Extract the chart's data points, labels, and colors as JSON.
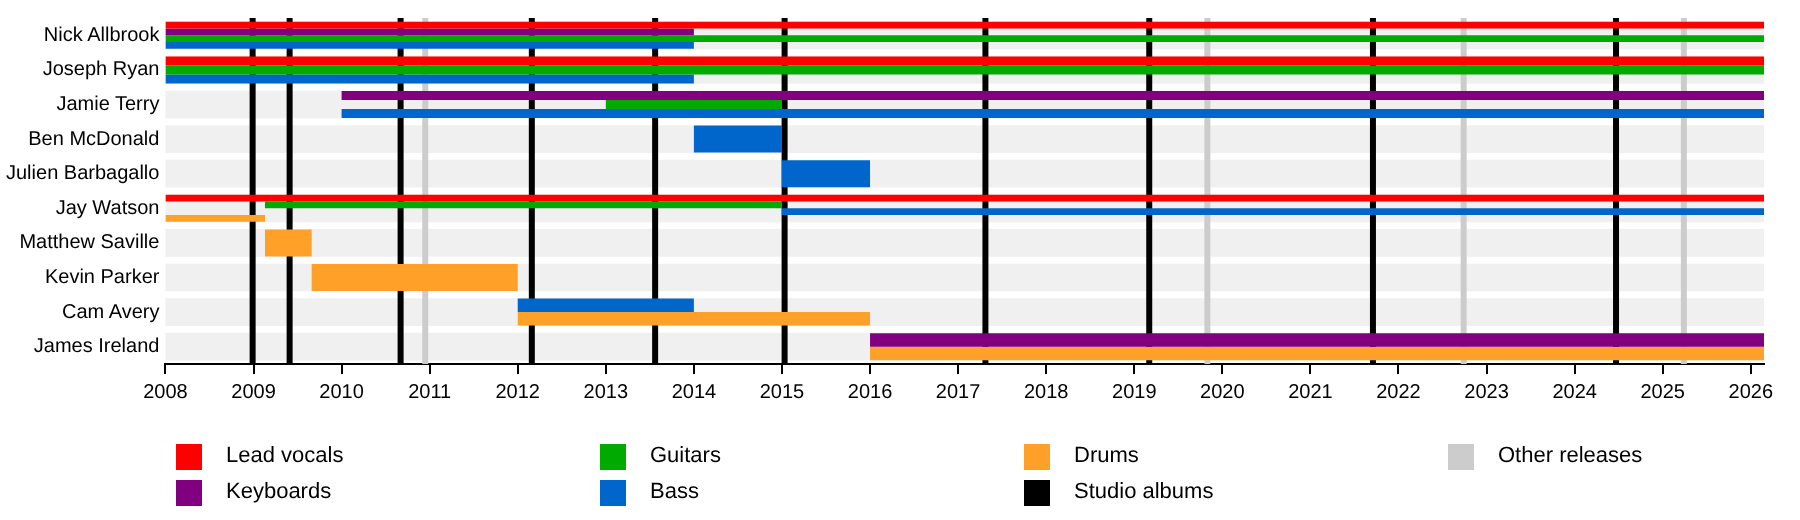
{
  "chart_data": {
    "type": "bar",
    "orientation": "horizontal",
    "categories": [
      "Nick Allbrook",
      "Joseph Ryan",
      "Jamie Terry",
      "Ben McDonald",
      "Julien Barbagallo",
      "Jay Watson",
      "Matthew Saville",
      "Kevin Parker",
      "Cam Avery",
      "James Ireland"
    ],
    "series": [
      {
        "name": "Lead vocals",
        "color": "#ff0000",
        "base": [
          2008,
          2008,
          null,
          null,
          null,
          2008,
          null,
          null,
          null,
          null
        ],
        "values": [
          18.15,
          18.15,
          null,
          null,
          null,
          18.15,
          null,
          null,
          null,
          null
        ]
      },
      {
        "name": "Keyboards",
        "color": "#800080",
        "base": [
          2008,
          null,
          2010,
          null,
          null,
          null,
          null,
          null,
          null,
          2016
        ],
        "values": [
          6,
          null,
          16.15,
          null,
          null,
          null,
          null,
          null,
          null,
          10.15
        ]
      },
      {
        "name": "Guitars",
        "color": "#00aa00",
        "base": [
          2008,
          2008,
          2013,
          null,
          null,
          2009.13,
          null,
          null,
          null,
          null
        ],
        "values": [
          18.15,
          18.15,
          2,
          null,
          null,
          5.87,
          null,
          null,
          null,
          null
        ]
      },
      {
        "name": "Bass",
        "color": "#0066cc",
        "base": [
          2008,
          2008,
          2010,
          2014,
          2015,
          2015,
          null,
          null,
          2012,
          null
        ],
        "values": [
          6,
          6,
          16.15,
          1,
          1,
          11.15,
          null,
          null,
          2,
          null
        ]
      },
      {
        "name": "Drums",
        "color": "#ffa028",
        "base": [
          null,
          null,
          null,
          null,
          null,
          2008,
          2009.13,
          2009.66,
          2012,
          2016
        ],
        "values": [
          null,
          null,
          null,
          null,
          null,
          1.13,
          0.53,
          2.34,
          4,
          10.15
        ]
      }
    ],
    "xlim": [
      2008,
      2026.15
    ],
    "xticks": [
      2008,
      2009,
      2010,
      2011,
      2012,
      2013,
      2014,
      2015,
      2016,
      2017,
      2018,
      2019,
      2020,
      2021,
      2022,
      2023,
      2024,
      2025,
      2026
    ],
    "ref_lines": [
      {
        "axis": "x",
        "value": 2008.99,
        "label": "Studio albums",
        "color": "#000000"
      },
      {
        "axis": "x",
        "value": 2009.41,
        "color": "#000000"
      },
      {
        "axis": "x",
        "value": 2010.67,
        "color": "#000000"
      },
      {
        "axis": "x",
        "value": 2012.16,
        "color": "#000000"
      },
      {
        "axis": "x",
        "value": 2013.56,
        "color": "#000000"
      },
      {
        "axis": "x",
        "value": 2015.03,
        "color": "#000000"
      },
      {
        "axis": "x",
        "value": 2017.31,
        "color": "#000000"
      },
      {
        "axis": "x",
        "value": 2019.17,
        "color": "#000000"
      },
      {
        "axis": "x",
        "value": 2021.71,
        "color": "#000000"
      },
      {
        "axis": "x",
        "value": 2024.47,
        "color": "#000000"
      },
      {
        "axis": "x",
        "value": 2010.95,
        "label": "Other releases",
        "color": "#cccccc"
      },
      {
        "axis": "x",
        "value": 2019.83,
        "color": "#cccccc"
      },
      {
        "axis": "x",
        "value": 2022.74,
        "color": "#cccccc"
      },
      {
        "axis": "x",
        "value": 2025.24,
        "color": "#cccccc"
      }
    ],
    "grid": false,
    "legend": "bottom"
  }
}
